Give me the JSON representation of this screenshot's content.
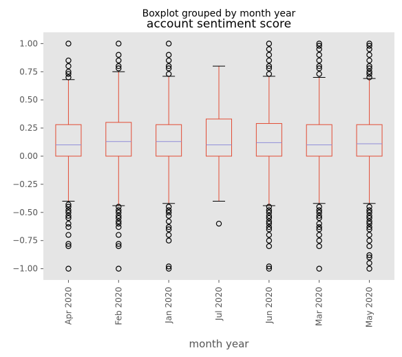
{
  "chart_data": {
    "type": "boxplot",
    "suptitle": "Boxplot grouped by month year",
    "title": "account sentiment score",
    "xlabel": "month year",
    "ylabel": "",
    "ylim": [
      -1.1,
      1.1
    ],
    "yticks": [
      1.0,
      0.75,
      0.5,
      0.25,
      0.0,
      -0.25,
      -0.5,
      -0.75,
      -1.0
    ],
    "ytick_labels": [
      "1.00",
      "0.75",
      "0.50",
      "0.25",
      "0.00",
      "−0.25",
      "−0.50",
      "−0.75",
      "−1.00"
    ],
    "grid": false,
    "colors": {
      "background": "#e5e5e5",
      "box": "#e24a33",
      "median": "#8e8cd8",
      "whisker_cap": "#000000",
      "flier": "#000000"
    },
    "categories": [
      "Apr 2020",
      "Feb 2020",
      "Jan 2020",
      "Jul 2020",
      "Jun 2020",
      "Mar 2020",
      "May 2020"
    ],
    "boxes": [
      {
        "q1": 0.0,
        "median": 0.1,
        "q3": 0.28,
        "whisker_low": -0.4,
        "whisker_high": 0.68,
        "fliers": [
          1.0,
          0.85,
          0.8,
          0.75,
          0.73,
          0.7,
          -0.43,
          -0.45,
          -0.48,
          -0.5,
          -0.53,
          -0.55,
          -0.6,
          -0.63,
          -0.7,
          -0.78,
          -0.8,
          -1.0
        ]
      },
      {
        "q1": 0.0,
        "median": 0.13,
        "q3": 0.3,
        "whisker_low": -0.44,
        "whisker_high": 0.75,
        "fliers": [
          1.0,
          0.9,
          0.85,
          0.8,
          0.78,
          -0.45,
          -0.48,
          -0.5,
          -0.53,
          -0.55,
          -0.58,
          -0.6,
          -0.63,
          -0.7,
          -0.78,
          -0.8,
          -1.0
        ]
      },
      {
        "q1": 0.0,
        "median": 0.13,
        "q3": 0.28,
        "whisker_low": -0.42,
        "whisker_high": 0.71,
        "fliers": [
          1.0,
          0.9,
          0.85,
          0.8,
          0.78,
          0.73,
          -0.45,
          -0.48,
          -0.5,
          -0.53,
          -0.58,
          -0.63,
          -0.65,
          -0.7,
          -0.75,
          -0.98,
          -1.0
        ]
      },
      {
        "q1": 0.0,
        "median": 0.1,
        "q3": 0.33,
        "whisker_low": -0.4,
        "whisker_high": 0.8,
        "fliers": [
          -0.6
        ]
      },
      {
        "q1": 0.0,
        "median": 0.12,
        "q3": 0.29,
        "whisker_low": -0.44,
        "whisker_high": 0.71,
        "fliers": [
          1.0,
          0.95,
          0.9,
          0.85,
          0.8,
          0.78,
          0.73,
          -0.45,
          -0.48,
          -0.5,
          -0.53,
          -0.55,
          -0.58,
          -0.6,
          -0.63,
          -0.65,
          -0.7,
          -0.75,
          -0.8,
          -0.98,
          -1.0
        ]
      },
      {
        "q1": 0.0,
        "median": 0.1,
        "q3": 0.28,
        "whisker_low": -0.42,
        "whisker_high": 0.7,
        "fliers": [
          1.0,
          0.98,
          0.95,
          0.9,
          0.85,
          0.8,
          0.78,
          0.73,
          -0.45,
          -0.48,
          -0.5,
          -0.53,
          -0.55,
          -0.6,
          -0.63,
          -0.65,
          -0.7,
          -0.75,
          -0.8,
          -1.0
        ]
      },
      {
        "q1": 0.0,
        "median": 0.11,
        "q3": 0.28,
        "whisker_low": -0.42,
        "whisker_high": 0.69,
        "fliers": [
          1.0,
          0.98,
          0.95,
          0.9,
          0.85,
          0.8,
          0.78,
          0.75,
          0.73,
          0.7,
          -0.45,
          -0.48,
          -0.5,
          -0.53,
          -0.55,
          -0.58,
          -0.6,
          -0.63,
          -0.65,
          -0.7,
          -0.75,
          -0.8,
          -0.88,
          -0.9,
          -0.95,
          -1.0
        ]
      }
    ]
  }
}
